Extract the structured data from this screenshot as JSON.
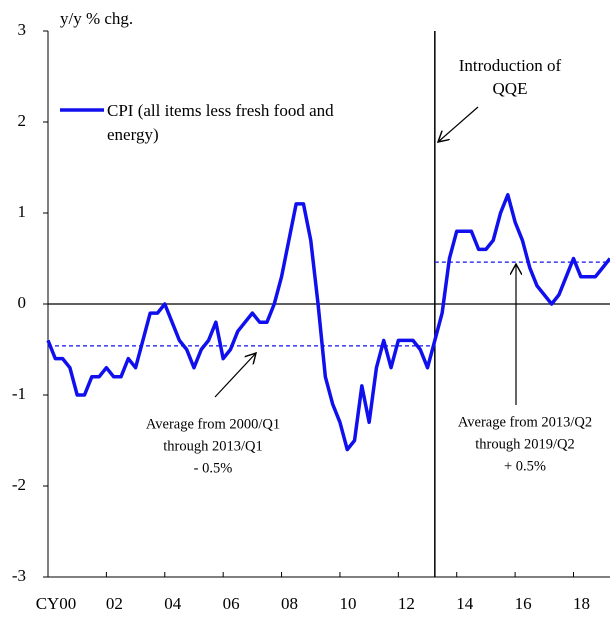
{
  "chart_data": {
    "type": "line",
    "y_label": "y/y % chg.",
    "x": [
      2000,
      2000.25,
      2000.5,
      2000.75,
      2001,
      2001.25,
      2001.5,
      2001.75,
      2002,
      2002.25,
      2002.5,
      2002.75,
      2003,
      2003.25,
      2003.5,
      2003.75,
      2004,
      2004.25,
      2004.5,
      2004.75,
      2005,
      2005.25,
      2005.5,
      2005.75,
      2006,
      2006.25,
      2006.5,
      2006.75,
      2007,
      2007.25,
      2007.5,
      2007.75,
      2008,
      2008.25,
      2008.5,
      2008.75,
      2009,
      2009.25,
      2009.5,
      2009.75,
      2010,
      2010.25,
      2010.5,
      2010.75,
      2011,
      2011.25,
      2011.5,
      2011.75,
      2012,
      2012.25,
      2012.5,
      2012.75,
      2013,
      2013.25,
      2013.5,
      2013.75,
      2014,
      2014.25,
      2014.5,
      2014.75,
      2015,
      2015.25,
      2015.5,
      2015.75,
      2016,
      2016.25,
      2016.5,
      2016.75,
      2017,
      2017.25,
      2017.5,
      2017.75,
      2018,
      2018.25,
      2018.5,
      2018.75,
      2019,
      2019.25
    ],
    "series": [
      {
        "name": "CPI (all items less fresh food and energy)",
        "color": "#1010ee",
        "values": [
          -0.4,
          -0.6,
          -0.6,
          -0.7,
          -1.0,
          -1.0,
          -0.8,
          -0.8,
          -0.7,
          -0.8,
          -0.8,
          -0.6,
          -0.7,
          -0.4,
          -0.1,
          -0.1,
          0.0,
          -0.2,
          -0.4,
          -0.5,
          -0.7,
          -0.5,
          -0.4,
          -0.2,
          -0.6,
          -0.5,
          -0.3,
          -0.2,
          -0.1,
          -0.2,
          -0.2,
          0.0,
          0.3,
          0.7,
          1.1,
          1.1,
          0.7,
          0.0,
          -0.8,
          -1.1,
          -1.3,
          -1.6,
          -1.5,
          -0.9,
          -1.3,
          -0.7,
          -0.4,
          -0.7,
          -0.4,
          -0.4,
          -0.4,
          -0.5,
          -0.7,
          -0.4,
          -0.1,
          0.5,
          0.8,
          0.8,
          0.8,
          0.6,
          0.6,
          0.7,
          1.0,
          1.2,
          0.9,
          0.7,
          0.4,
          0.2,
          0.1,
          0.0,
          0.1,
          0.3,
          0.5,
          0.3,
          0.3,
          0.3,
          0.4,
          0.5
        ]
      }
    ],
    "reference_lines": [
      {
        "x_from": 2000,
        "x_to": 2013.25,
        "value": -0.46,
        "text": [
          "Average from 2000/Q1",
          "through 2013/Q1",
          "- 0.5%"
        ]
      },
      {
        "x_from": 2013.25,
        "x_to": 2019.25,
        "value": 0.46,
        "text": [
          "Average from 2013/Q2",
          "through 2019/Q2",
          "+ 0.5%"
        ]
      }
    ],
    "event": {
      "x": 2013.25,
      "text": [
        "Introduction of",
        "QQE"
      ]
    },
    "xlim": [
      2000,
      2019.25
    ],
    "xticks": [
      {
        "value": 2000,
        "label": "CY00"
      },
      {
        "value": 2002,
        "label": "02"
      },
      {
        "value": 2004,
        "label": "04"
      },
      {
        "value": 2006,
        "label": "06"
      },
      {
        "value": 2008,
        "label": "08"
      },
      {
        "value": 2010,
        "label": "10"
      },
      {
        "value": 2012,
        "label": "12"
      },
      {
        "value": 2014,
        "label": "14"
      },
      {
        "value": 2016,
        "label": "16"
      },
      {
        "value": 2018,
        "label": "18"
      }
    ],
    "ylim": [
      -3,
      3
    ],
    "yticks": [
      -3,
      -2,
      -1,
      0,
      1,
      2,
      3
    ]
  }
}
